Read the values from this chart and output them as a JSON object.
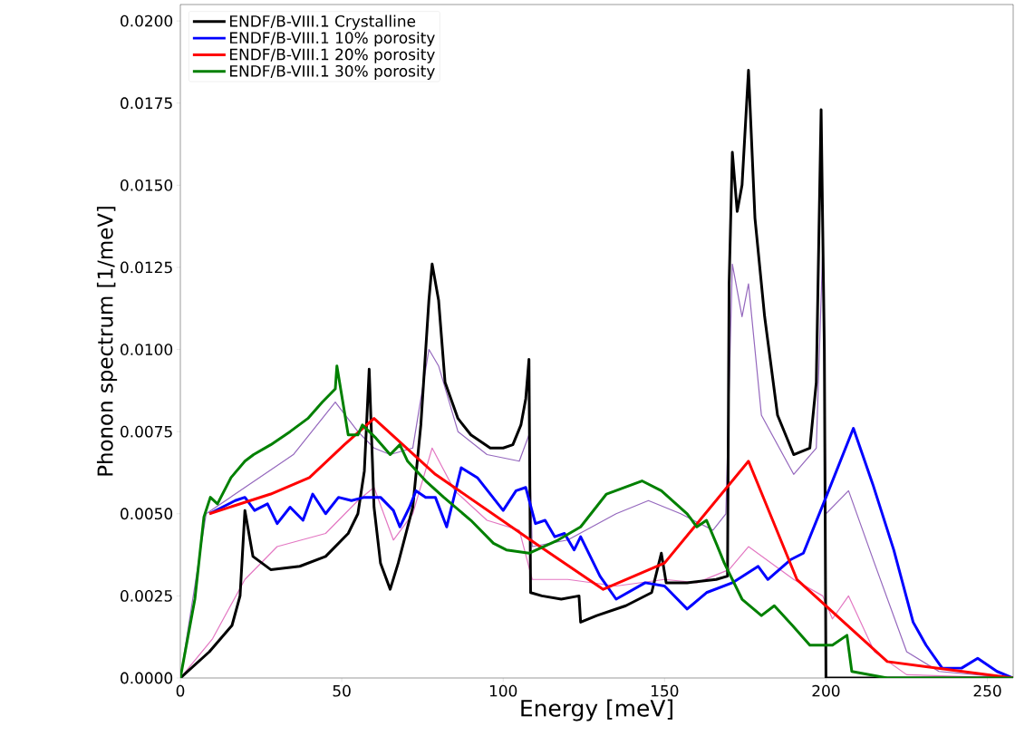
{
  "chart_data": {
    "type": "line",
    "xlabel": "Energy [meV]",
    "ylabel": "Phonon spectrum [1/meV]",
    "xlim": [
      0,
      258
    ],
    "ylim": [
      0,
      0.0205
    ],
    "xticks": [
      0,
      50,
      100,
      150,
      200,
      250
    ],
    "yticks": [
      {
        "value": 0,
        "label": "0.0000"
      },
      {
        "value": 0.0025,
        "label": "0.0025"
      },
      {
        "value": 0.005,
        "label": "0.0050"
      },
      {
        "value": 0.0075,
        "label": "0.0075"
      },
      {
        "value": 0.01,
        "label": "0.0100"
      },
      {
        "value": 0.0125,
        "label": "0.0125"
      },
      {
        "value": 0.015,
        "label": "0.0150"
      },
      {
        "value": 0.0175,
        "label": "0.0175"
      },
      {
        "value": 0.02,
        "label": "0.0200"
      }
    ],
    "legend": "top left",
    "series": [
      {
        "color": "#9467bd",
        "x": [
          0,
          8,
          20,
          35,
          48,
          55,
          60,
          65,
          72,
          77,
          80,
          86,
          95,
          105,
          108,
          109,
          120,
          135,
          145,
          155,
          165,
          169,
          171,
          174,
          176,
          180,
          190,
          197,
          199,
          200,
          207,
          215,
          225,
          235,
          258
        ],
        "values": [
          0,
          0.005,
          0.0058,
          0.0068,
          0.0084,
          0.0075,
          0.007,
          0.0068,
          0.007,
          0.01,
          0.0095,
          0.0075,
          0.0068,
          0.0066,
          0.0074,
          0.004,
          0.0042,
          0.005,
          0.0054,
          0.005,
          0.0045,
          0.005,
          0.0126,
          0.011,
          0.012,
          0.008,
          0.0062,
          0.007,
          0.0131,
          0.005,
          0.0057,
          0.0035,
          0.0008,
          0.0002,
          0
        ]
      },
      {
        "color": "#e377c2",
        "x": [
          0,
          10,
          20,
          30,
          45,
          55,
          60,
          66,
          72,
          78,
          85,
          95,
          105,
          109,
          120,
          135,
          150,
          160,
          170,
          176,
          190,
          199,
          202,
          207,
          215,
          225,
          258
        ],
        "values": [
          0,
          0.0012,
          0.003,
          0.004,
          0.0044,
          0.0054,
          0.0058,
          0.0042,
          0.005,
          0.007,
          0.0057,
          0.0048,
          0.0045,
          0.003,
          0.003,
          0.0028,
          0.003,
          0.0029,
          0.0033,
          0.004,
          0.003,
          0.0025,
          0.0018,
          0.0025,
          0.0008,
          0.0001,
          0
        ]
      },
      {
        "name": "ENDF/B-VIII.1 Crystalline",
        "color": "#000000",
        "x": [
          0,
          9,
          16,
          18.5,
          20,
          22.5,
          28,
          37,
          45,
          52,
          55,
          57,
          58.5,
          60,
          62,
          65,
          67.5,
          72,
          74.5,
          77,
          78,
          80,
          82,
          86,
          90,
          96,
          100,
          103,
          105.5,
          107,
          108,
          108.5,
          112,
          118,
          123.5,
          124,
          129,
          138,
          146,
          149,
          150.5,
          157,
          166,
          169.5,
          170,
          171,
          172.5,
          174,
          176,
          178,
          181,
          185,
          190,
          195,
          197,
          198.5,
          199.5,
          200,
          258
        ],
        "values": [
          0,
          0.0008,
          0.0016,
          0.0025,
          0.0051,
          0.0037,
          0.0033,
          0.0034,
          0.0037,
          0.0044,
          0.005,
          0.0063,
          0.0094,
          0.0052,
          0.0035,
          0.0027,
          0.0035,
          0.0052,
          0.0077,
          0.0115,
          0.0126,
          0.0115,
          0.009,
          0.0079,
          0.0074,
          0.007,
          0.007,
          0.0071,
          0.0077,
          0.0085,
          0.0097,
          0.0026,
          0.0025,
          0.0024,
          0.0025,
          0.0017,
          0.0019,
          0.0022,
          0.0026,
          0.0038,
          0.0029,
          0.0029,
          0.003,
          0.0031,
          0.012,
          0.016,
          0.0142,
          0.015,
          0.0185,
          0.014,
          0.011,
          0.008,
          0.0068,
          0.007,
          0.009,
          0.0173,
          0.01,
          0,
          0
        ]
      },
      {
        "name": "ENDF/B-VIII.1 10% porosity",
        "color": "#0000ff",
        "x": [
          9,
          13,
          17,
          20,
          23,
          27,
          30,
          34,
          38,
          41,
          45,
          49,
          53,
          57,
          62,
          66,
          68,
          71,
          73,
          76,
          79,
          82.5,
          87,
          92,
          100,
          104,
          107,
          110,
          113,
          116,
          119,
          122,
          124,
          130,
          135,
          144,
          150,
          157,
          163,
          171,
          179,
          182,
          189,
          193,
          200,
          208.5,
          214.5,
          221,
          227,
          231,
          236,
          242,
          247,
          253,
          258
        ],
        "values": [
          0.005,
          0.0052,
          0.0054,
          0.0055,
          0.0051,
          0.0053,
          0.0047,
          0.0052,
          0.0048,
          0.0056,
          0.005,
          0.0055,
          0.0054,
          0.0055,
          0.0055,
          0.0051,
          0.0046,
          0.0052,
          0.0057,
          0.0055,
          0.0055,
          0.0046,
          0.0064,
          0.0061,
          0.0051,
          0.0057,
          0.0058,
          0.0047,
          0.0048,
          0.0043,
          0.0044,
          0.0039,
          0.0043,
          0.0031,
          0.0024,
          0.0029,
          0.0028,
          0.0021,
          0.0026,
          0.0029,
          0.0034,
          0.003,
          0.0036,
          0.0038,
          0.0055,
          0.0076,
          0.0059,
          0.0039,
          0.0017,
          0.001,
          0.0003,
          0.0003,
          0.0006,
          0.0002,
          0
        ]
      },
      {
        "name": "ENDF/B-VIII.1 20% porosity",
        "color": "#ff0000",
        "x": [
          9,
          28,
          40,
          50.8,
          60,
          79,
          110,
          131,
          150,
          176,
          191,
          219,
          258
        ],
        "values": [
          0.005,
          0.0056,
          0.0061,
          0.0071,
          0.0079,
          0.0062,
          0.0041,
          0.0027,
          0.0035,
          0.0066,
          0.003,
          0.0005,
          0
        ]
      },
      {
        "name": "ENDF/B-VIII.1 30% porosity",
        "color": "#008000",
        "x": [
          0,
          4.5,
          7.3,
          9.3,
          11.5,
          15.7,
          20,
          22.7,
          28,
          34,
          39.5,
          44,
          48,
          48.5,
          52,
          55,
          56.4,
          60.6,
          65,
          68,
          70.4,
          76,
          81.6,
          90,
          97,
          101,
          108,
          117,
          124,
          132,
          143,
          149,
          157,
          160,
          163,
          166,
          168.5,
          174,
          180,
          184,
          189.6,
          195,
          202,
          206.5,
          208,
          219,
          258
        ],
        "values": [
          0,
          0.0024,
          0.0049,
          0.0055,
          0.0053,
          0.0061,
          0.0066,
          0.0068,
          0.0071,
          0.0075,
          0.0079,
          0.0084,
          0.0088,
          0.0095,
          0.0074,
          0.0074,
          0.0077,
          0.0073,
          0.0068,
          0.0071,
          0.0066,
          0.006,
          0.0055,
          0.0048,
          0.0041,
          0.0039,
          0.0038,
          0.0042,
          0.0046,
          0.0056,
          0.006,
          0.0057,
          0.005,
          0.0046,
          0.0048,
          0.0041,
          0.0035,
          0.0024,
          0.0019,
          0.0022,
          0.0016,
          0.001,
          0.001,
          0.0013,
          0.0002,
          0,
          0
        ]
      }
    ]
  }
}
